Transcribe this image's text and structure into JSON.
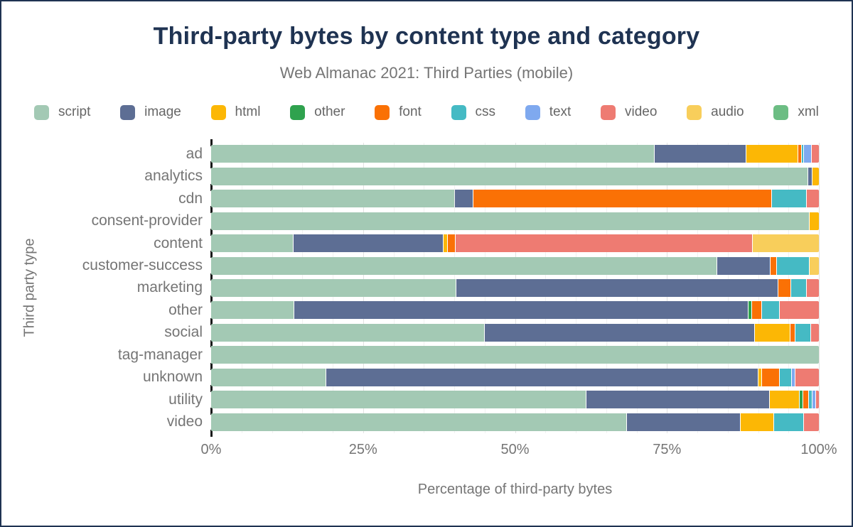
{
  "header": {
    "title": "Third-party bytes by content type and category",
    "subtitle": "Web Almanac 2021: Third Parties (mobile)"
  },
  "chart_data": {
    "type": "bar",
    "orientation": "horizontal",
    "stacked": true,
    "title": "Third-party bytes by content type and category",
    "subtitle": "Web Almanac 2021: Third Parties (mobile)",
    "xlabel": "Percentage of third-party bytes",
    "ylabel": "Third party type",
    "xlim": [
      0,
      100
    ],
    "x_ticks": [
      "0%",
      "25%",
      "50%",
      "75%",
      "100%"
    ],
    "grid": "vertical minor lines every 5%, major every 25%",
    "legend_position": "top",
    "content_types": [
      {
        "name": "script",
        "color": "#a3c9b4"
      },
      {
        "name": "image",
        "color": "#5d6e94"
      },
      {
        "name": "html",
        "color": "#fcb705"
      },
      {
        "name": "other",
        "color": "#2fa24e"
      },
      {
        "name": "font",
        "color": "#fa7105"
      },
      {
        "name": "css",
        "color": "#45bac4"
      },
      {
        "name": "text",
        "color": "#7fa9ef"
      },
      {
        "name": "video",
        "color": "#ee7b72"
      },
      {
        "name": "audio",
        "color": "#f8ce5b"
      },
      {
        "name": "xml",
        "color": "#6cbd83"
      }
    ],
    "categories": [
      "ad",
      "analytics",
      "cdn",
      "consent-provider",
      "content",
      "customer-success",
      "marketing",
      "other",
      "social",
      "tag-manager",
      "unknown",
      "utility",
      "video"
    ],
    "series": [
      {
        "name": "script",
        "values": [
          73.3,
          98.3,
          40.2,
          98.5,
          13.5,
          83.5,
          40.3,
          13.6,
          45.0,
          100,
          18.9,
          61.8,
          68.3
        ]
      },
      {
        "name": "image",
        "values": [
          15.1,
          0.7,
          2.9,
          0,
          24.7,
          8.7,
          52.9,
          74.9,
          44.4,
          0,
          71.2,
          30.1,
          18.6
        ]
      },
      {
        "name": "html",
        "values": [
          8.4,
          1.0,
          0,
          1.5,
          0.6,
          0,
          0,
          0,
          5.8,
          0,
          0.5,
          4.8,
          5.4
        ]
      },
      {
        "name": "other",
        "values": [
          0,
          0,
          0,
          0,
          0,
          0,
          0,
          0.5,
          0,
          0,
          0,
          0.5,
          0
        ]
      },
      {
        "name": "font",
        "values": [
          0.5,
          0,
          49.3,
          0,
          1.2,
          1.0,
          2.0,
          1.5,
          0.7,
          0,
          2.8,
          0.8,
          0
        ]
      },
      {
        "name": "css",
        "values": [
          0.3,
          0,
          5.6,
          0,
          0,
          5.3,
          2.5,
          2.8,
          2.4,
          0,
          1.9,
          0.5,
          4.8
        ]
      },
      {
        "name": "text",
        "values": [
          1.1,
          0,
          0,
          0,
          0,
          0,
          0,
          0,
          0,
          0,
          0.4,
          0.4,
          0
        ]
      },
      {
        "name": "video",
        "values": [
          1.2,
          0,
          2.0,
          0,
          49.0,
          0,
          2.0,
          6.5,
          1.3,
          0,
          3.9,
          0.5,
          2.4
        ]
      },
      {
        "name": "audio",
        "values": [
          0,
          0,
          0,
          0,
          11.0,
          1.5,
          0,
          0,
          0,
          0,
          0,
          0,
          0
        ]
      },
      {
        "name": "xml",
        "values": [
          0,
          0,
          0,
          0,
          0,
          0,
          0,
          0,
          0,
          0,
          0,
          0,
          0
        ]
      }
    ]
  }
}
